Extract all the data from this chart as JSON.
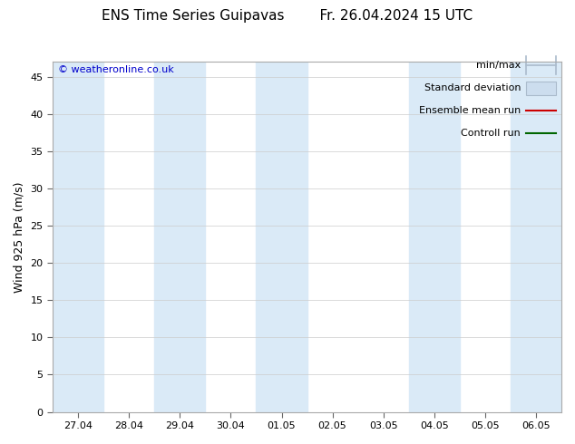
{
  "title": "ENS Time Series Guipavas        Fr. 26.04.2024 15 UTC",
  "ylabel": "Wind 925 hPa (m/s)",
  "ylim": [
    0,
    47
  ],
  "yticks": [
    0,
    5,
    10,
    15,
    20,
    25,
    30,
    35,
    40,
    45
  ],
  "x_labels": [
    "27.04",
    "28.04",
    "29.04",
    "30.04",
    "01.05",
    "02.05",
    "03.05",
    "04.05",
    "05.05",
    "06.05"
  ],
  "x_positions": [
    0,
    1,
    2,
    3,
    4,
    5,
    6,
    7,
    8,
    9
  ],
  "shaded_bands": [
    0,
    2,
    4,
    7,
    9
  ],
  "copyright_text": "© weatheronline.co.uk",
  "legend_items": [
    {
      "label": "min/max",
      "color": "#aabbcc",
      "type": "errorbar"
    },
    {
      "label": "Standard deviation",
      "color": "#ccddee",
      "type": "box"
    },
    {
      "label": "Ensemble mean run",
      "color": "#cc0000",
      "type": "line"
    },
    {
      "label": "Controll run",
      "color": "#006600",
      "type": "line"
    }
  ],
  "bg_color": "#ffffff",
  "band_color": "#daeaf7",
  "plot_bg_color": "#ffffff",
  "font_size_title": 11,
  "font_size_ylabel": 9,
  "font_size_ticks": 8,
  "font_size_legend": 8,
  "font_size_copyright": 8
}
